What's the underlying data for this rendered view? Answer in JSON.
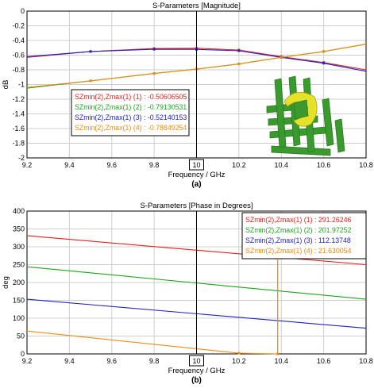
{
  "chart_data": [
    {
      "type": "line",
      "title": "S-Parameters [Magnitude]",
      "xlabel": "Frequency / GHz",
      "ylabel": "dB",
      "caption": "(a)",
      "xlim": [
        9.2,
        10.8
      ],
      "ylim": [
        -2,
        0
      ],
      "xticks": [
        "9.2",
        "9.4",
        "9.6",
        "9.8",
        "10",
        "10.2",
        "10.4",
        "10.6",
        "10.8"
      ],
      "yticks": [
        "0",
        "-0.2",
        "-0.4",
        "-0.6",
        "-0.8",
        "-1",
        "-1.2",
        "-1.4",
        "-1.6",
        "-1.8",
        "-2"
      ],
      "grid": true,
      "marker_x": 10,
      "legend_position": "center-left",
      "legend": [
        "SZmin(2),Zmax(1) (1) : -0.50606505",
        "SZmin(2),Zmax(1) (2) : -0.79130531",
        "SZmin(2),Zmax(1) (3) : -0.52140153",
        "SZmin(2),Zmax(1) (4) : -0.78849254"
      ],
      "series": [
        {
          "color": "#e8201e",
          "x": [
            9.2,
            9.5,
            9.8,
            10.0,
            10.2,
            10.4,
            10.6,
            10.8
          ],
          "y": [
            -0.63,
            -0.55,
            -0.51,
            -0.506,
            -0.53,
            -0.62,
            -0.7,
            -0.8
          ]
        },
        {
          "color": "#1ca51c",
          "x": [
            9.2,
            9.5,
            9.8,
            10.0,
            10.2,
            10.4,
            10.6,
            10.8
          ],
          "y": [
            -1.05,
            -0.95,
            -0.85,
            -0.79,
            -0.72,
            -0.63,
            -0.55,
            -0.45
          ]
        },
        {
          "color": "#2121c8",
          "x": [
            9.2,
            9.5,
            9.8,
            10.0,
            10.2,
            10.4,
            10.6,
            10.8
          ],
          "y": [
            -0.62,
            -0.55,
            -0.52,
            -0.521,
            -0.54,
            -0.63,
            -0.71,
            -0.82
          ]
        },
        {
          "color": "#ee8b12",
          "x": [
            9.2,
            9.5,
            9.8,
            10.0,
            10.2,
            10.4,
            10.6,
            10.8
          ],
          "y": [
            -1.04,
            -0.95,
            -0.85,
            -0.79,
            -0.72,
            -0.63,
            -0.55,
            -0.45
          ]
        }
      ]
    },
    {
      "type": "line",
      "title": "S-Parameters [Phase in Degrees]",
      "xlabel": "Frequency / GHz",
      "ylabel": "deg",
      "caption": "(b)",
      "xlim": [
        9.2,
        10.8
      ],
      "ylim": [
        0,
        400
      ],
      "xticks": [
        "9.2",
        "9.4",
        "9.6",
        "9.8",
        "10",
        "10.2",
        "10.4",
        "10.6",
        "10.8"
      ],
      "yticks": [
        "400",
        "350",
        "300",
        "250",
        "200",
        "150",
        "100",
        "50",
        "0"
      ],
      "grid": true,
      "marker_x": 10,
      "legend_position": "top-right",
      "legend": [
        "SZmin(2),Zmax(1) (1) : 291.26246",
        "SZmin(2),Zmax(1) (2) : 201.97252",
        "SZmin(2),Zmax(1) (3) : 112.13748",
        "SZmin(2),Zmax(1) (4) : 21.630054"
      ],
      "series": [
        {
          "color": "#e8201e",
          "x": [
            9.2,
            10.8
          ],
          "y": [
            331,
            250
          ]
        },
        {
          "color": "#1ca51c",
          "x": [
            9.2,
            10.8
          ],
          "y": [
            244,
            153
          ]
        },
        {
          "color": "#2121c8",
          "x": [
            9.2,
            10.8
          ],
          "y": [
            153,
            72
          ]
        },
        {
          "color": "#ee8b12",
          "x": [
            9.2,
            10.2,
            10.383,
            10.383,
            10.8
          ],
          "y": [
            64,
            2,
            0,
            360,
            333
          ]
        }
      ]
    }
  ]
}
